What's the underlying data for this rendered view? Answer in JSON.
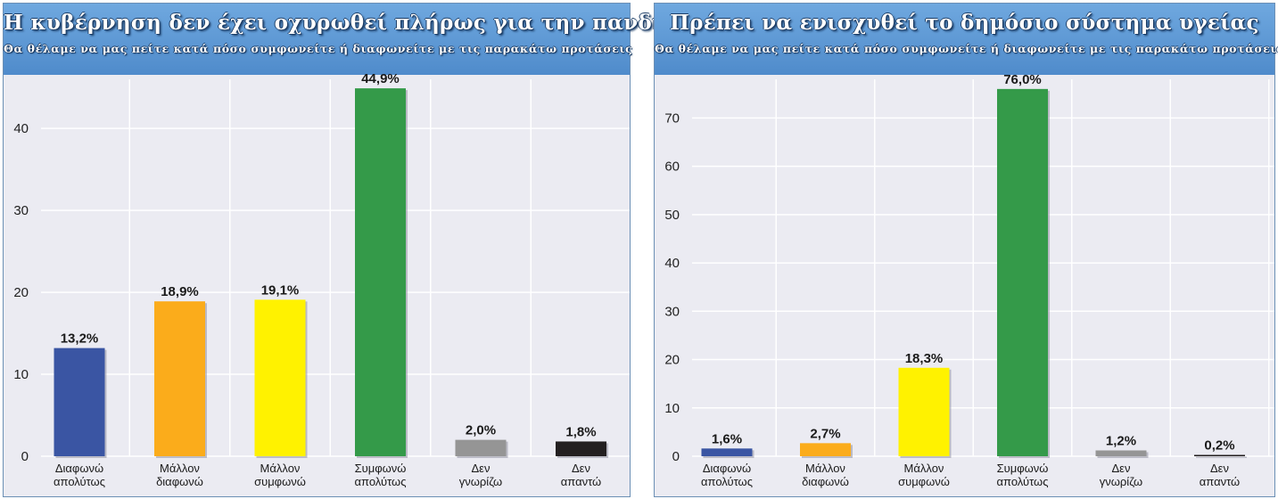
{
  "chart_data": [
    {
      "type": "bar",
      "title": "Η κυβέρνηση δεν έχει οχυρωθεί πλήρως για την πανδημία",
      "subtitle": "Θα θέλαμε να μας πείτε κατά πόσο συμφωνείτε ή διαφωνείτε με τις παρακάτω προτάσεις",
      "categories": [
        [
          "Διαφωνώ",
          "απολύτως"
        ],
        [
          "Μάλλον",
          "διαφωνώ"
        ],
        [
          "Μάλλον",
          "συμφωνώ"
        ],
        [
          "Συμφωνώ",
          "απολύτως"
        ],
        [
          "Δεν",
          "γνωρίζω"
        ],
        [
          "Δεν",
          "απαντώ"
        ]
      ],
      "values": [
        13.2,
        18.9,
        19.1,
        44.9,
        2.0,
        1.8
      ],
      "value_labels": [
        "13,2%",
        "18,9%",
        "19,1%",
        "44,9%",
        "2,0%",
        "1,8%"
      ],
      "colors": [
        "#3a55a3",
        "#fbac1b",
        "#fff200",
        "#349a49",
        "#959595",
        "#231f20"
      ],
      "ylim": [
        0,
        46
      ],
      "yticks": [
        0,
        10,
        20,
        30,
        40
      ],
      "grid": true,
      "xlabel": "",
      "ylabel": ""
    },
    {
      "type": "bar",
      "title": "Πρέπει να ενισχυθεί το δημόσιο σύστημα υγείας",
      "subtitle": "Θα θέλαμε να μας πείτε κατά πόσο συμφωνείτε ή διαφωνείτε με τις παρακάτω προτάσεις",
      "categories": [
        [
          "Διαφωνώ",
          "απολύτως"
        ],
        [
          "Μάλλον",
          "διαφωνώ"
        ],
        [
          "Μάλλον",
          "συμφωνώ"
        ],
        [
          "Συμφωνώ",
          "απολύτως"
        ],
        [
          "Δεν",
          "γνωρίζω"
        ],
        [
          "Δεν",
          "απαντώ"
        ]
      ],
      "values": [
        1.6,
        2.7,
        18.3,
        76.0,
        1.2,
        0.2
      ],
      "value_labels": [
        "1,6%",
        "2,7%",
        "18,3%",
        "76,0%",
        "1,2%",
        "0,2%"
      ],
      "colors": [
        "#3a55a3",
        "#fbac1b",
        "#fff200",
        "#349a49",
        "#959595",
        "#231f20"
      ],
      "ylim": [
        0,
        78
      ],
      "yticks": [
        0,
        10,
        20,
        30,
        40,
        50,
        60,
        70
      ],
      "grid": true,
      "xlabel": "",
      "ylabel": ""
    }
  ]
}
